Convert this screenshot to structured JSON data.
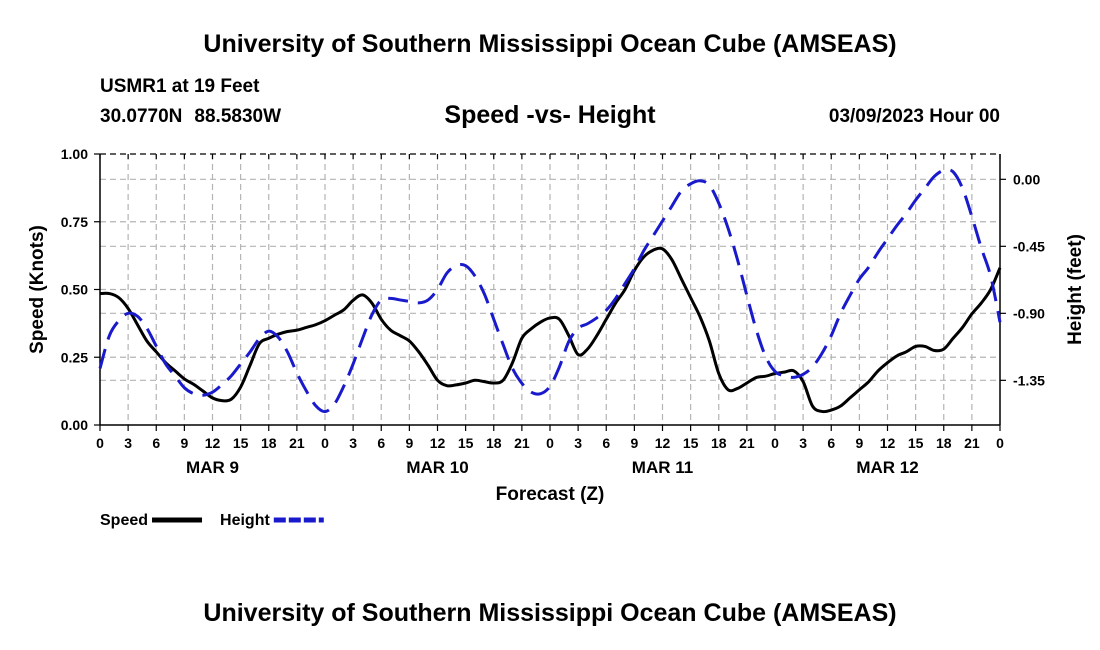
{
  "header": {
    "title": "University of Southern Mississippi Ocean Cube (AMSEAS)",
    "station": "USMR1 at 19 Feet",
    "lat": "30.0770N",
    "lon": "88.5830W",
    "subtitle": "Speed -vs- Height",
    "date": "03/09/2023 Hour 00"
  },
  "footer": {
    "title": "University of Southern Mississippi Ocean Cube (AMSEAS)"
  },
  "chart_data": {
    "type": "line",
    "title": "Speed -vs- Height",
    "xlabel": "Forecast (Z)",
    "ylabel": "Speed (Knots)",
    "y2label": "Height (feet)",
    "xlim": [
      0,
      96
    ],
    "ylim": [
      0,
      1.0
    ],
    "y2lim": [
      -1.65,
      0.17
    ],
    "grid": true,
    "x_tick_step": 3,
    "x_tick_labels": [
      "0",
      "3",
      "6",
      "9",
      "12",
      "15",
      "18",
      "21",
      "0",
      "3",
      "6",
      "9",
      "12",
      "15",
      "18",
      "21",
      "0",
      "3",
      "6",
      "9",
      "12",
      "15",
      "18",
      "21",
      "0",
      "3",
      "6",
      "9",
      "12",
      "15",
      "18",
      "21",
      "0"
    ],
    "y_ticks": [
      0,
      0.25,
      0.5,
      0.75,
      1.0
    ],
    "y_tick_labels": [
      "0.00",
      "0.25",
      "0.50",
      "0.75",
      "1.00"
    ],
    "y2_ticks": [
      0.0,
      -0.45,
      -0.9,
      -1.35
    ],
    "y2_tick_labels": [
      "0.00",
      "-0.45",
      "-0.90",
      "-1.35"
    ],
    "day_labels": [
      {
        "label": "MAR 9",
        "hour": 12
      },
      {
        "label": "MAR 10",
        "hour": 36
      },
      {
        "label": "MAR 11",
        "hour": 60
      },
      {
        "label": "MAR 12",
        "hour": 84
      }
    ],
    "legend": {
      "position": "bottom-left"
    },
    "series": [
      {
        "name": "Speed",
        "axis": "left",
        "color": "#000000",
        "dash": "solid",
        "x": [
          0,
          1,
          2,
          3,
          4,
          5,
          6,
          7,
          8,
          9,
          10,
          11,
          12,
          13,
          14,
          15,
          16,
          17,
          18,
          19,
          20,
          21,
          22,
          23,
          24,
          25,
          26,
          27,
          28,
          29,
          30,
          31,
          32,
          33,
          34,
          35,
          36,
          37,
          38,
          39,
          40,
          41,
          42,
          43,
          44,
          45,
          46,
          47,
          48,
          49,
          50,
          51,
          52,
          53,
          54,
          55,
          56,
          57,
          58,
          59,
          60,
          61,
          62,
          63,
          64,
          65,
          66,
          67,
          68,
          69,
          70,
          71,
          72,
          73,
          74,
          75,
          76,
          77,
          78,
          79,
          80,
          81,
          82,
          83,
          84,
          85,
          86,
          87,
          88,
          89,
          90,
          91,
          92,
          93,
          94,
          95,
          96
        ],
        "values": [
          0.485,
          0.485,
          0.47,
          0.43,
          0.37,
          0.31,
          0.27,
          0.23,
          0.2,
          0.17,
          0.15,
          0.125,
          0.1,
          0.09,
          0.095,
          0.14,
          0.22,
          0.3,
          0.32,
          0.335,
          0.345,
          0.35,
          0.36,
          0.37,
          0.385,
          0.405,
          0.425,
          0.46,
          0.48,
          0.45,
          0.39,
          0.35,
          0.33,
          0.31,
          0.27,
          0.22,
          0.165,
          0.145,
          0.148,
          0.155,
          0.165,
          0.16,
          0.155,
          0.165,
          0.23,
          0.32,
          0.355,
          0.38,
          0.395,
          0.39,
          0.33,
          0.26,
          0.28,
          0.33,
          0.39,
          0.45,
          0.5,
          0.57,
          0.62,
          0.645,
          0.65,
          0.61,
          0.54,
          0.47,
          0.4,
          0.31,
          0.19,
          0.13,
          0.135,
          0.155,
          0.175,
          0.18,
          0.19,
          0.195,
          0.2,
          0.16,
          0.07,
          0.05,
          0.055,
          0.07,
          0.1,
          0.13,
          0.16,
          0.2,
          0.23,
          0.255,
          0.27,
          0.29,
          0.29,
          0.275,
          0.28,
          0.32,
          0.36,
          0.41,
          0.45,
          0.5,
          0.58
        ]
      },
      {
        "name": "Height",
        "axis": "right",
        "color": "#1a1acd",
        "dash": "dashed",
        "x": [
          0,
          1,
          2,
          3,
          4,
          5,
          6,
          7,
          8,
          9,
          10,
          11,
          12,
          13,
          14,
          15,
          16,
          17,
          18,
          19,
          20,
          21,
          22,
          23,
          24,
          25,
          26,
          27,
          28,
          29,
          30,
          31,
          32,
          33,
          34,
          35,
          36,
          37,
          38,
          39,
          40,
          41,
          42,
          43,
          44,
          45,
          46,
          47,
          48,
          49,
          50,
          51,
          52,
          53,
          54,
          55,
          56,
          57,
          58,
          59,
          60,
          61,
          62,
          63,
          64,
          65,
          66,
          67,
          68,
          69,
          70,
          71,
          72,
          73,
          74,
          75,
          76,
          77,
          78,
          79,
          80,
          81,
          82,
          83,
          84,
          85,
          86,
          87,
          88,
          89,
          90,
          91,
          92,
          93,
          94,
          95,
          96
        ],
        "values": [
          -1.27,
          -1.05,
          -0.95,
          -0.9,
          -0.92,
          -1.0,
          -1.12,
          -1.24,
          -1.32,
          -1.4,
          -1.44,
          -1.45,
          -1.43,
          -1.38,
          -1.32,
          -1.24,
          -1.16,
          -1.07,
          -1.02,
          -1.06,
          -1.16,
          -1.3,
          -1.42,
          -1.52,
          -1.56,
          -1.51,
          -1.39,
          -1.24,
          -1.07,
          -0.91,
          -0.81,
          -0.8,
          -0.81,
          -0.82,
          -0.83,
          -0.81,
          -0.74,
          -0.63,
          -0.58,
          -0.58,
          -0.65,
          -0.77,
          -0.94,
          -1.11,
          -1.27,
          -1.37,
          -1.43,
          -1.44,
          -1.39,
          -1.26,
          -1.09,
          -1.0,
          -0.97,
          -0.93,
          -0.88,
          -0.8,
          -0.7,
          -0.6,
          -0.48,
          -0.38,
          -0.28,
          -0.18,
          -0.08,
          -0.03,
          -0.01,
          -0.04,
          -0.16,
          -0.33,
          -0.54,
          -0.78,
          -1.01,
          -1.19,
          -1.29,
          -1.32,
          -1.33,
          -1.31,
          -1.26,
          -1.17,
          -1.05,
          -0.9,
          -0.78,
          -0.67,
          -0.59,
          -0.49,
          -0.4,
          -0.31,
          -0.23,
          -0.14,
          -0.06,
          0.02,
          0.06,
          0.05,
          -0.06,
          -0.25,
          -0.46,
          -0.65,
          -0.96
        ]
      }
    ]
  }
}
